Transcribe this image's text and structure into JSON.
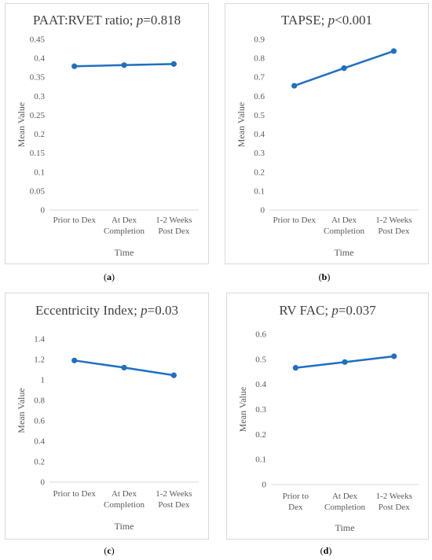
{
  "colors": {
    "series": "#1f6fc1",
    "grid": "#d9d9d9",
    "axis_text": "#595959"
  },
  "chart_data": [
    {
      "type": "line",
      "title": "PAAT:RVET ratio; p=0.818",
      "title_main": "PAAT:RVET ratio; ",
      "title_p": "p",
      "title_val": "=0.818",
      "caption": "a",
      "categories": [
        [
          "Prior to Dex"
        ],
        [
          "At Dex",
          "Completion"
        ],
        [
          "1-2 Weeks",
          "Post Dex"
        ]
      ],
      "values": [
        0.379,
        0.382,
        0.385
      ],
      "ylim": [
        0,
        0.45
      ],
      "yticks": [
        "0",
        "0.05",
        "0.1",
        "0.15",
        "0.2",
        "0.25",
        "0.3",
        "0.35",
        "0.4",
        "0.45"
      ],
      "xlabel": "Time",
      "ylabel": "Mean Value",
      "grid": false
    },
    {
      "type": "line",
      "title": "TAPSE; p<0.001",
      "title_main": "TAPSE; ",
      "title_p": "p",
      "title_val": "<0.001",
      "caption": "b",
      "categories": [
        [
          "Prior to Dex"
        ],
        [
          "At Dex",
          "Completion"
        ],
        [
          "1-2 Weeks",
          "Post Dex"
        ]
      ],
      "values": [
        0.655,
        0.748,
        0.838
      ],
      "ylim": [
        0,
        0.9
      ],
      "yticks": [
        "0",
        "0.1",
        "0.2",
        "0.3",
        "0.4",
        "0.5",
        "0.6",
        "0.7",
        "0.8",
        "0.9"
      ],
      "xlabel": "Time",
      "ylabel": "Mean Value",
      "grid": false
    },
    {
      "type": "line",
      "title": "Eccentricity Index; p=0.03",
      "title_main": "Eccentricity Index; ",
      "title_p": "p",
      "title_val": "=0.03",
      "caption": "c",
      "categories": [
        [
          "Prior to Dex"
        ],
        [
          "At Dex",
          "Completion"
        ],
        [
          "1-2 Weeks",
          "Post Dex"
        ]
      ],
      "values": [
        1.19,
        1.12,
        1.045
      ],
      "ylim": [
        0,
        1.4
      ],
      "yticks": [
        "0",
        "0.2",
        "0.4",
        "0.6",
        "0.8",
        "1",
        "1.2",
        "1.4"
      ],
      "xlabel": "Time",
      "ylabel": "Mean Value",
      "grid": false
    },
    {
      "type": "line",
      "title": "RV FAC; p=0.037",
      "title_main": "RV FAC; ",
      "title_p": "p",
      "title_val": "=0.037",
      "caption": "d",
      "categories": [
        [
          "Prior to",
          "Dex"
        ],
        [
          "At Dex",
          "Completion"
        ],
        [
          "1-2 Weeks",
          "Post Dex"
        ]
      ],
      "values": [
        0.466,
        0.489,
        0.512
      ],
      "ylim": [
        0,
        0.6
      ],
      "yticks": [
        "0",
        "0.1",
        "0.2",
        "0.3",
        "0.4",
        "0.5",
        "0.6"
      ],
      "xlabel": "Time",
      "ylabel": "Mean Value",
      "grid": false
    }
  ]
}
